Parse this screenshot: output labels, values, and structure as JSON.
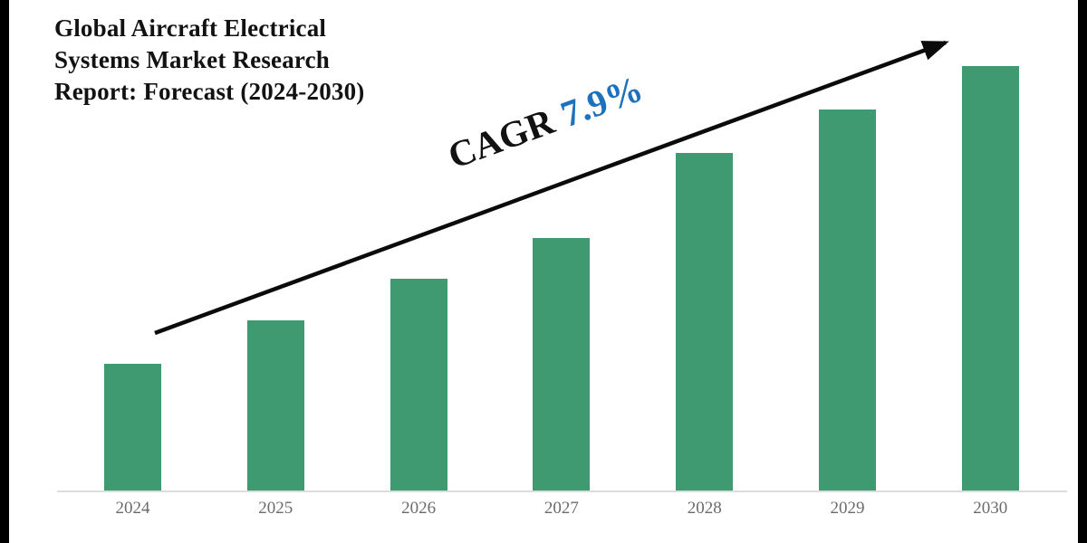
{
  "title": {
    "lines": [
      "Global Aircraft Electrical",
      "Systems Market Research",
      "Report: Forecast (2024-2030)"
    ]
  },
  "annotation": {
    "label": "CAGR",
    "value": "7.9%"
  },
  "colors": {
    "bar_green": "#3f9a72",
    "accent_blue": "#1e72bd",
    "arrow_black": "#0b0b0b",
    "axis_line_gray": "#dcdcdc",
    "tick_label_gray": "#6b6b6b",
    "title_black": "#121212",
    "side_border_black": "#000000"
  },
  "chart_data": {
    "type": "bar",
    "title": "Global Aircraft Electrical Systems Market Research Report: Forecast (2024-2030)",
    "categories": [
      "2024",
      "2025",
      "2026",
      "2027",
      "2028",
      "2029",
      "2030"
    ],
    "values": [
      141,
      189,
      235,
      280,
      374,
      422,
      470
    ],
    "values_unit": "relative bar height (no numeric value axis shown in chart)",
    "annotation": "CAGR 7.9%",
    "xlabel": "",
    "ylabel": "",
    "legend": "none",
    "grid": false,
    "bar_color": "#3f9a72"
  }
}
